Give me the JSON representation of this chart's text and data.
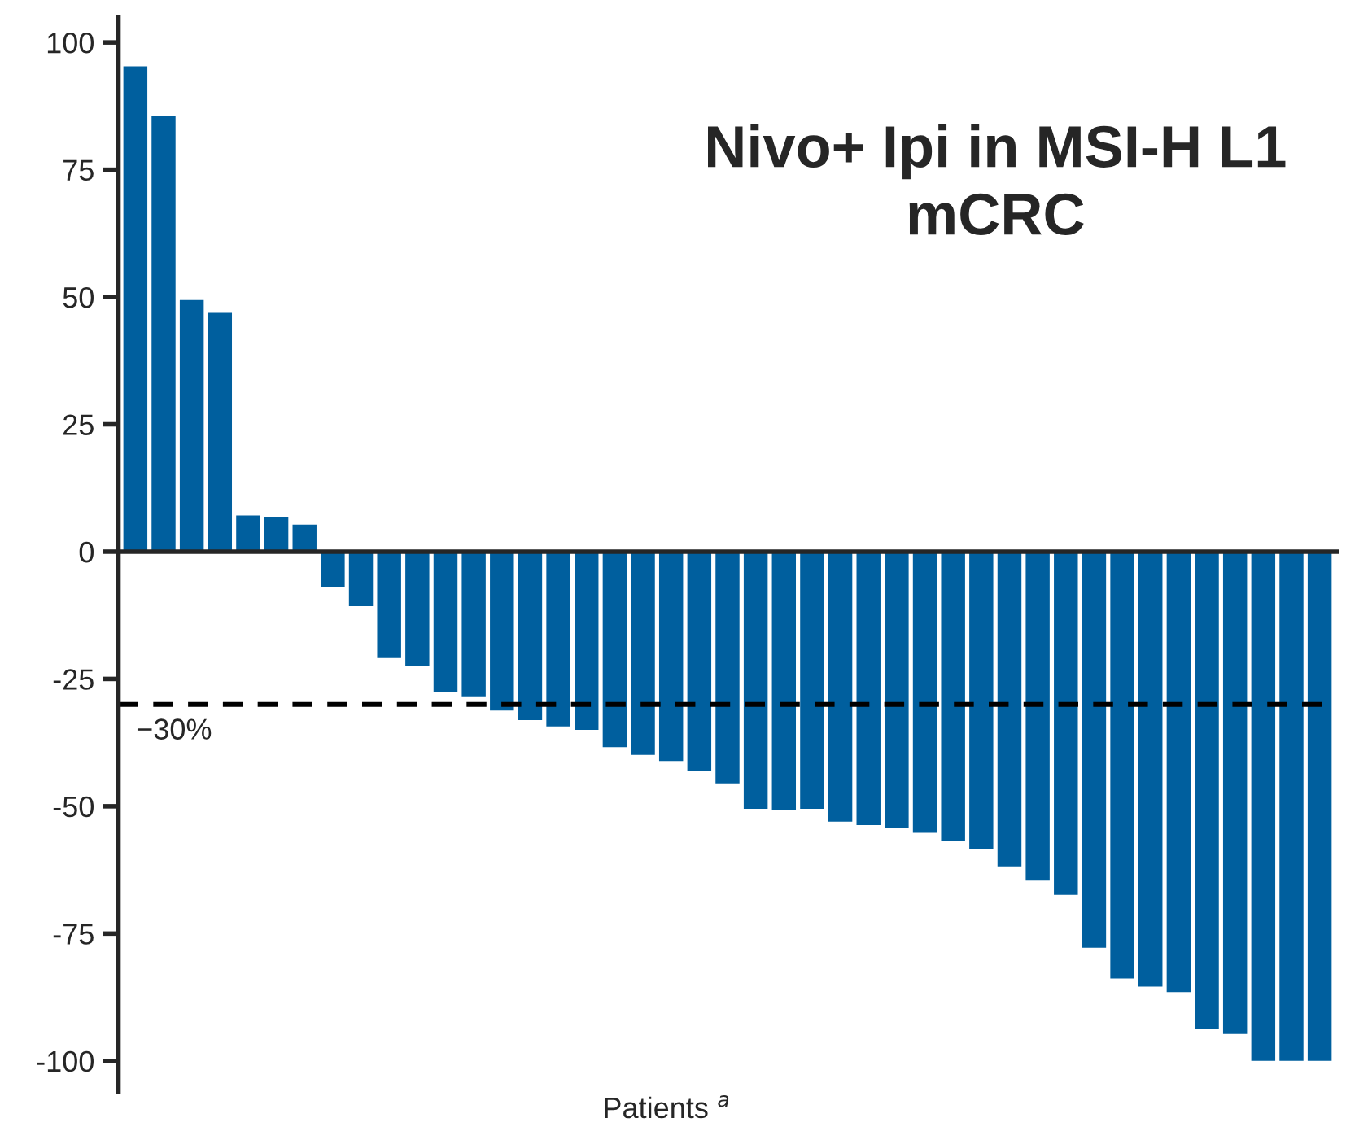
{
  "chart_data": {
    "type": "bar",
    "title": "Nivo+ Ipi in MSI-H L1\nmCRC",
    "xlabel": "Patients $^{a}$",
    "categories": [
      null,
      null,
      null,
      null,
      null,
      null,
      null,
      null,
      null,
      null,
      null,
      null,
      null,
      null,
      null,
      null,
      null,
      null,
      null,
      null,
      null,
      null,
      null,
      null,
      null,
      null,
      null,
      null,
      null,
      null,
      null,
      null,
      null,
      null,
      null,
      null,
      null,
      null,
      null,
      null,
      null,
      null,
      null
    ],
    "values": [
      95.3,
      85.5,
      49.4,
      46.9,
      7.1,
      6.8,
      5.3,
      -7.0,
      -10.7,
      -20.9,
      -22.5,
      -27.5,
      -28.4,
      -31.2,
      -33.1,
      -34.3,
      -35.0,
      -38.4,
      -39.9,
      -41.1,
      -43.0,
      -45.5,
      -50.5,
      -50.8,
      -50.5,
      -53.0,
      -53.7,
      -54.3,
      -55.2,
      -56.8,
      -58.4,
      -61.8,
      -64.6,
      -67.4,
      -77.8,
      -83.8,
      -85.4,
      -86.5,
      -93.8,
      -94.7,
      -100,
      -100,
      -100
    ],
    "color": "#005f9e",
    "ylim": [
      -106,
      105
    ],
    "yticks": [
      -100,
      -75,
      -50,
      -25,
      0,
      25,
      50,
      75,
      100
    ],
    "ref_lines": [
      {
        "axis": "y",
        "value": -30,
        "label": "−30%",
        "color": "#000000",
        "line_style": "dashed"
      }
    ],
    "legend": false
  }
}
